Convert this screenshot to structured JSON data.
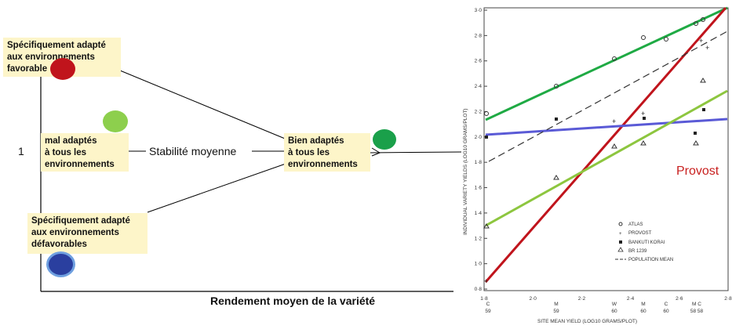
{
  "diagram": {
    "y_label": "1",
    "x_axis_title": "Rendement moyen de la variété",
    "middle_label": "Stabilité moyenne",
    "box_top": [
      "Spécifiquement adapté",
      "aux environnements",
      "favorable"
    ],
    "box_mid_left": [
      "mal adaptés",
      "à tous les",
      "environnements"
    ],
    "box_mid_right": [
      "Bien adaptés",
      "à tous les",
      "environnements"
    ],
    "box_bottom": [
      "Spécifiquement adapté",
      "aux environnements",
      "défavorables"
    ],
    "dot_colors": {
      "top": "#c0141c",
      "mid_left": "#8dcf4d",
      "mid_right": "#1aa04a",
      "bottom": "#2a3f9f"
    }
  },
  "figure": {
    "overlay_label": "Provost",
    "ylabel": "INDIVIDUAL VARIETY YIELDS (LOG10 GRAMS/PLOT)",
    "xlabel": "SITE MEAN YIELD (LOG10 GRAMS/PLOT)",
    "y_ticks": [
      "3·0",
      "2·8",
      "2·6",
      "2·4",
      "2·2",
      "2·0",
      "1·8",
      "1·6",
      "1·4",
      "1·2",
      "1·0",
      "0·8"
    ],
    "x_ticks": [
      "1·8",
      "2·0",
      "2·2",
      "2·4",
      "2·6",
      "2·8"
    ],
    "x_site_codes": [
      "C",
      "M",
      "W",
      "M",
      "C",
      "M C"
    ],
    "x_site_years": [
      "59",
      "59",
      "60",
      "60",
      "60",
      "58 58"
    ],
    "legend": [
      "ATLAS",
      "PROVOST",
      "BANKUTI KORAI",
      "BR 1239",
      "POPULATION MEAN"
    ],
    "line_colors": {
      "atlas": "#1faa44",
      "provost": "#c0141c",
      "bankuti": "#5a5ad6",
      "br": "#8dc63f",
      "mean": "#333333"
    }
  }
}
